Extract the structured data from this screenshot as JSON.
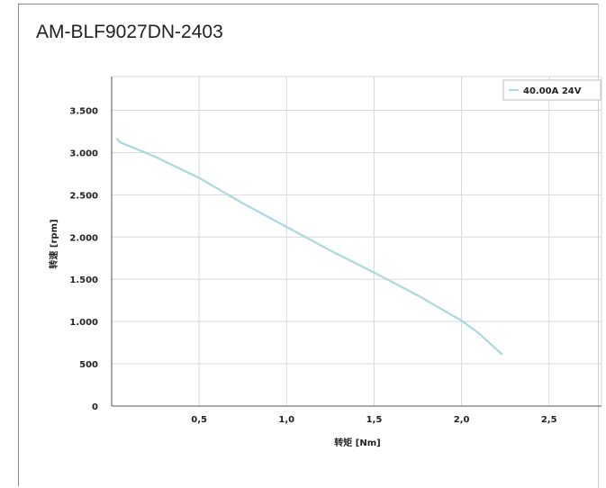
{
  "chart_data": {
    "type": "line",
    "title": "AM-BLF9027DN-2403",
    "xlabel": "转矩 [Nm]",
    "ylabel": "转速 [rpm]",
    "xlim": [
      0.0,
      2.8
    ],
    "ylim": [
      0,
      3900
    ],
    "x_ticks": [
      0.5,
      1.0,
      1.5,
      2.0,
      2.5
    ],
    "x_tick_labels": [
      "0,5",
      "1,0",
      "1,5",
      "2,0",
      "2,5"
    ],
    "y_ticks": [
      0,
      500,
      1000,
      1500,
      2000,
      2500,
      3000,
      3500
    ],
    "y_tick_labels": [
      "0",
      "500",
      "1.000",
      "1.500",
      "2.000",
      "2.500",
      "3.000",
      "3.500"
    ],
    "grid": true,
    "legend_position": "top-right",
    "series": [
      {
        "name": "40.00A 24V",
        "color": "#a8d8e0",
        "x": [
          0.03,
          0.05,
          0.25,
          0.5,
          0.75,
          1.0,
          1.25,
          1.5,
          1.75,
          2.0,
          2.1,
          2.2,
          2.23
        ],
        "y": [
          3160,
          3120,
          2950,
          2700,
          2400,
          2120,
          1840,
          1580,
          1310,
          1010,
          860,
          670,
          615
        ]
      }
    ]
  }
}
